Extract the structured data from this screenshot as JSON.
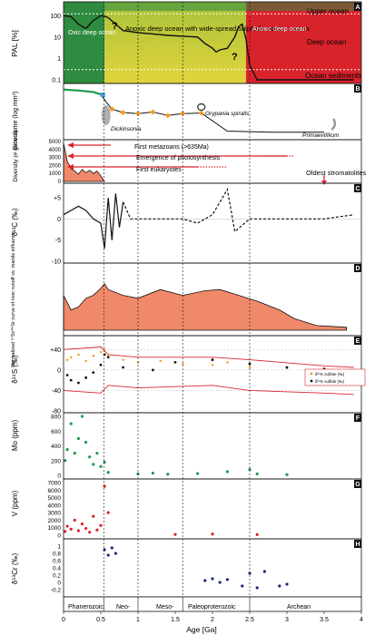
{
  "figure": {
    "x_axis": {
      "label": "Age [Ga]",
      "ticks": [
        "0",
        "0.5",
        "1",
        "1.5",
        "2",
        "2.5",
        "3",
        "3.5",
        "4"
      ]
    },
    "eras": [
      "Phanerozoic",
      "Neo-",
      "Meso-",
      "Paleoproterozoic",
      "Archean"
    ],
    "panels": [
      {
        "letter": "A",
        "ylabel": "PAL [%]",
        "yticks": [
          "0.1",
          "1",
          "10",
          "100"
        ],
        "zones": [
          "Upper ocean",
          "Deep ocean",
          "Ocean sediments"
        ],
        "labels": [
          "Oxic deep ocean",
          "Anoxic deep ocean with wide-spread sulphidic bottom waters",
          "Anoxic deep ocean"
        ],
        "question_marks": [
          "?",
          "?"
        ],
        "colors": {
          "oxic": "#2e8b3f",
          "sulphidic": "#c9c63a",
          "anoxic": "#d9232b"
        }
      },
      {
        "letter": "B",
        "ylabel": "Biovolume (log mm³)",
        "labels": [
          "Dickinsonia",
          "Grypania spiralis",
          "Primaevifilium"
        ]
      },
      {
        "letter": "",
        "ylabel": "Diversity (# genera)",
        "yticks": [
          "0",
          "1000",
          "2000",
          "3000",
          "4000",
          "5000"
        ],
        "annotations": [
          "First metazoans (>635Ma)",
          "Emergence of photosynthesis",
          "First eukaryotes",
          "Oldest stromatolites"
        ],
        "colors": {
          "fill": "#f0896a",
          "arrow": "#d9232b"
        }
      },
      {
        "letter": "C",
        "ylabel": "δ¹³C (‰)",
        "yticks": [
          "+5",
          "0",
          "-5",
          "-10"
        ]
      },
      {
        "letter": "D",
        "ylabel": "Normalized ⁸⁷Sr/⁸⁶Sr curve of river runoff vs. mantle influence"
      },
      {
        "letter": "E",
        "ylabel": "δ³⁴S (‰)",
        "yticks": [
          "+40",
          "0",
          "-40",
          "-80"
        ],
        "legend": [
          "δ³⁴S sulfate (‰)",
          "δ³⁴S sulfide (‰)"
        ],
        "colors": {
          "sulfate": "#f59a1d",
          "sulfide": "#111111",
          "envelope": "#d9232b"
        }
      },
      {
        "letter": "F",
        "ylabel": "Mo (ppm)",
        "yticks": [
          "0",
          "200",
          "400",
          "600",
          "800"
        ],
        "color": "#1f9a4b"
      },
      {
        "letter": "G",
        "ylabel": "V (ppm)",
        "yticks": [
          "0",
          "1000",
          "2000",
          "3000",
          "4000",
          "5000",
          "6000",
          "7000"
        ],
        "color": "#d9232b"
      },
      {
        "letter": "H",
        "ylabel": "δ⁵³Cr (‰)",
        "yticks": [
          "-0.2",
          "0",
          "0.2",
          "0.4",
          "0.6",
          "0.8",
          "1"
        ],
        "color": "#1f2a7a"
      }
    ]
  },
  "chart_data": [
    {
      "type": "line",
      "title": "",
      "xlabel": "Age [Ga]",
      "ylabel": "PAL [%]",
      "yscale": "log",
      "ylim": [
        0.1,
        300
      ],
      "series": [
        {
          "x": [
            0,
            0.1,
            0.2,
            0.3,
            0.4,
            0.5,
            0.55,
            0.6,
            0.7,
            0.8,
            0.9,
            1.0,
            1.2,
            1.4,
            1.6,
            1.8,
            1.9,
            2.0,
            2.05,
            2.1,
            2.2,
            2.3,
            2.35,
            2.4,
            2.45,
            2.5,
            2.6,
            3.0,
            3.5,
            3.9
          ],
          "values": [
            100,
            90,
            40,
            25,
            60,
            100,
            95,
            80,
            40,
            20,
            18,
            16,
            14,
            12,
            11,
            10,
            5,
            3,
            2,
            2.5,
            3,
            10,
            30,
            40,
            8,
            0.5,
            0.1,
            0.1,
            0.1,
            0.1
          ]
        }
      ]
    },
    {
      "type": "line",
      "ylabel": "Biovolume (log mm³)",
      "series": [
        {
          "x": [
            0,
            0.2,
            0.4,
            0.5,
            0.57,
            0.65,
            0.8,
            1.0,
            1.2,
            1.4,
            1.6,
            1.85,
            2.2,
            2.8,
            3.5
          ],
          "values": [
            11.5,
            11.3,
            11.0,
            10.5,
            9.0,
            7.5,
            6.8,
            6.6,
            6.9,
            6.2,
            6.6,
            6.7,
            3.0,
            2.8,
            2.8
          ]
        }
      ]
    },
    {
      "type": "area",
      "ylabel": "Diversity (# genera)",
      "ylim": [
        0,
        5000
      ],
      "series": [
        {
          "x": [
            0,
            0.02,
            0.05,
            0.08,
            0.1,
            0.15,
            0.2,
            0.25,
            0.3,
            0.35,
            0.4,
            0.45,
            0.5,
            0.55
          ],
          "values": [
            4800,
            3900,
            2500,
            2000,
            1600,
            1300,
            900,
            1500,
            1100,
            1400,
            1000,
            1300,
            700,
            0
          ]
        }
      ]
    },
    {
      "type": "line",
      "ylabel": "δ¹³C (‰)",
      "ylim": [
        -10,
        8
      ],
      "series": [
        {
          "x": [
            0,
            0.1,
            0.2,
            0.3,
            0.4,
            0.5,
            0.55,
            0.6,
            0.65,
            0.7,
            0.75,
            0.8,
            0.9,
            1.2,
            1.6,
            1.8,
            2.0,
            2.1,
            2.2,
            2.3,
            2.5,
            3.0,
            3.5,
            3.9
          ],
          "values": [
            1,
            2,
            3,
            2,
            0,
            -1,
            -7,
            5,
            -5,
            6,
            -2,
            4,
            0,
            0,
            0,
            -1,
            1,
            4,
            7,
            -3,
            0,
            0,
            0,
            1
          ]
        }
      ]
    },
    {
      "type": "area",
      "ylabel": "Normalized ⁸⁷Sr/⁸⁶Sr curve of river runoff vs. mantle influence",
      "ylim": [
        0,
        1
      ],
      "series": [
        {
          "x": [
            0,
            0.1,
            0.2,
            0.3,
            0.4,
            0.5,
            0.55,
            0.6,
            0.8,
            1.0,
            1.3,
            1.6,
            1.9,
            2.1,
            2.3,
            2.6,
            2.9,
            3.1,
            3.4,
            3.8
          ],
          "values": [
            0.6,
            0.35,
            0.4,
            0.55,
            0.6,
            0.72,
            0.8,
            0.7,
            0.6,
            0.55,
            0.7,
            0.6,
            0.68,
            0.7,
            0.62,
            0.5,
            0.35,
            0.2,
            0.08,
            0.05
          ]
        }
      ]
    },
    {
      "type": "scatter",
      "ylabel": "δ³⁴S (‰)",
      "ylim": [
        -80,
        60
      ],
      "series": [
        {
          "name": "δ³⁴S sulfate (‰)",
          "x": [
            0.05,
            0.1,
            0.2,
            0.3,
            0.4,
            0.5,
            0.55,
            0.6,
            0.8,
            1.0,
            1.3,
            1.6,
            2.0,
            2.2,
            2.5,
            3.0,
            3.5
          ],
          "values": [
            20,
            25,
            30,
            18,
            28,
            35,
            40,
            30,
            20,
            15,
            18,
            12,
            10,
            15,
            5,
            4,
            3
          ]
        },
        {
          "name": "δ³⁴S sulfide (‰)",
          "x": [
            0.05,
            0.1,
            0.2,
            0.3,
            0.4,
            0.5,
            0.55,
            0.6,
            0.8,
            1.2,
            1.5,
            2.0,
            2.5,
            3.0,
            3.5
          ],
          "values": [
            -10,
            -20,
            -25,
            -15,
            -5,
            10,
            30,
            25,
            5,
            0,
            15,
            20,
            12,
            5,
            2
          ]
        }
      ]
    },
    {
      "type": "scatter",
      "ylabel": "Mo (ppm)",
      "ylim": [
        0,
        800
      ],
      "series": [
        {
          "x": [
            0.02,
            0.05,
            0.1,
            0.15,
            0.2,
            0.25,
            0.3,
            0.35,
            0.4,
            0.45,
            0.5,
            0.55,
            0.6,
            1.0,
            1.2,
            1.4,
            1.8,
            2.2,
            2.5,
            2.6,
            3.0
          ],
          "values": [
            200,
            350,
            700,
            300,
            500,
            800,
            450,
            250,
            150,
            300,
            120,
            180,
            40,
            20,
            30,
            15,
            25,
            50,
            80,
            20,
            10
          ]
        }
      ]
    },
    {
      "type": "scatter",
      "ylabel": "V (ppm)",
      "ylim": [
        0,
        7000
      ],
      "series": [
        {
          "x": [
            0.02,
            0.05,
            0.1,
            0.15,
            0.2,
            0.25,
            0.3,
            0.35,
            0.4,
            0.45,
            0.5,
            0.55,
            0.6,
            1.5,
            2.0,
            2.6
          ],
          "values": [
            500,
            1200,
            800,
            2000,
            600,
            1500,
            900,
            400,
            2500,
            700,
            1300,
            6500,
            3000,
            100,
            150,
            80
          ]
        }
      ]
    },
    {
      "type": "scatter",
      "ylabel": "δ⁵³Cr (‰)",
      "ylim": [
        -0.3,
        1.1
      ],
      "series": [
        {
          "x": [
            0.55,
            0.6,
            0.65,
            0.7,
            1.9,
            2.0,
            2.1,
            2.2,
            2.4,
            2.5,
            2.6,
            2.7,
            2.9,
            3.0
          ],
          "values": [
            0.9,
            0.75,
            0.95,
            0.8,
            0.05,
            0.1,
            0.0,
            0.08,
            -0.1,
            0.25,
            -0.15,
            0.3,
            -0.1,
            -0.05
          ]
        }
      ]
    }
  ]
}
